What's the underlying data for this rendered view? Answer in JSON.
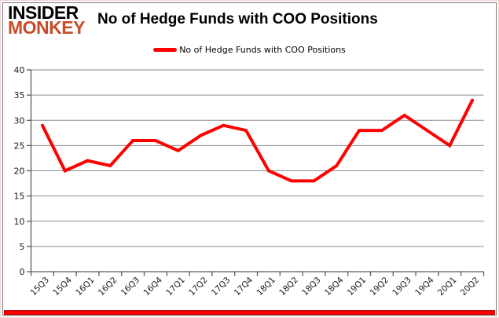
{
  "logo": {
    "line1": "INSIDER",
    "line2": "MONKEY"
  },
  "header": {
    "title": "No of Hedge Funds with COO Positions"
  },
  "legend": {
    "label": "No of Hedge Funds with COO Positions",
    "line_color": "#ff0000"
  },
  "colors": {
    "series_red": "#ff0000",
    "logo_red": "#c74b28",
    "gridline": "#8c8c8c",
    "axis": "#595959",
    "tick_label": "#1a1a1a",
    "bottom_bar": "#ff0000"
  },
  "chart_data": {
    "type": "line",
    "title": "No of Hedge Funds with COO Positions",
    "categories": [
      "15Q3",
      "15Q4",
      "16Q1",
      "16Q2",
      "16Q3",
      "16Q4",
      "17Q1",
      "17Q2",
      "17Q3",
      "17Q4",
      "18Q1",
      "18Q2",
      "18Q3",
      "18Q4",
      "19Q1",
      "19Q2",
      "19Q3",
      "19Q4",
      "20Q1",
      "20Q2"
    ],
    "series": [
      {
        "name": "No of Hedge Funds with COO Positions",
        "values": [
          29,
          20,
          22,
          21,
          26,
          26,
          24,
          27,
          29,
          28,
          20,
          18,
          18,
          21,
          28,
          28,
          31,
          28,
          25,
          34
        ]
      }
    ],
    "xlabel": "",
    "ylabel": "",
    "ylim": [
      0,
      40
    ],
    "yticks": [
      0,
      5,
      10,
      15,
      20,
      25,
      30,
      35,
      40
    ],
    "grid": true,
    "legend_position": "top-center"
  }
}
